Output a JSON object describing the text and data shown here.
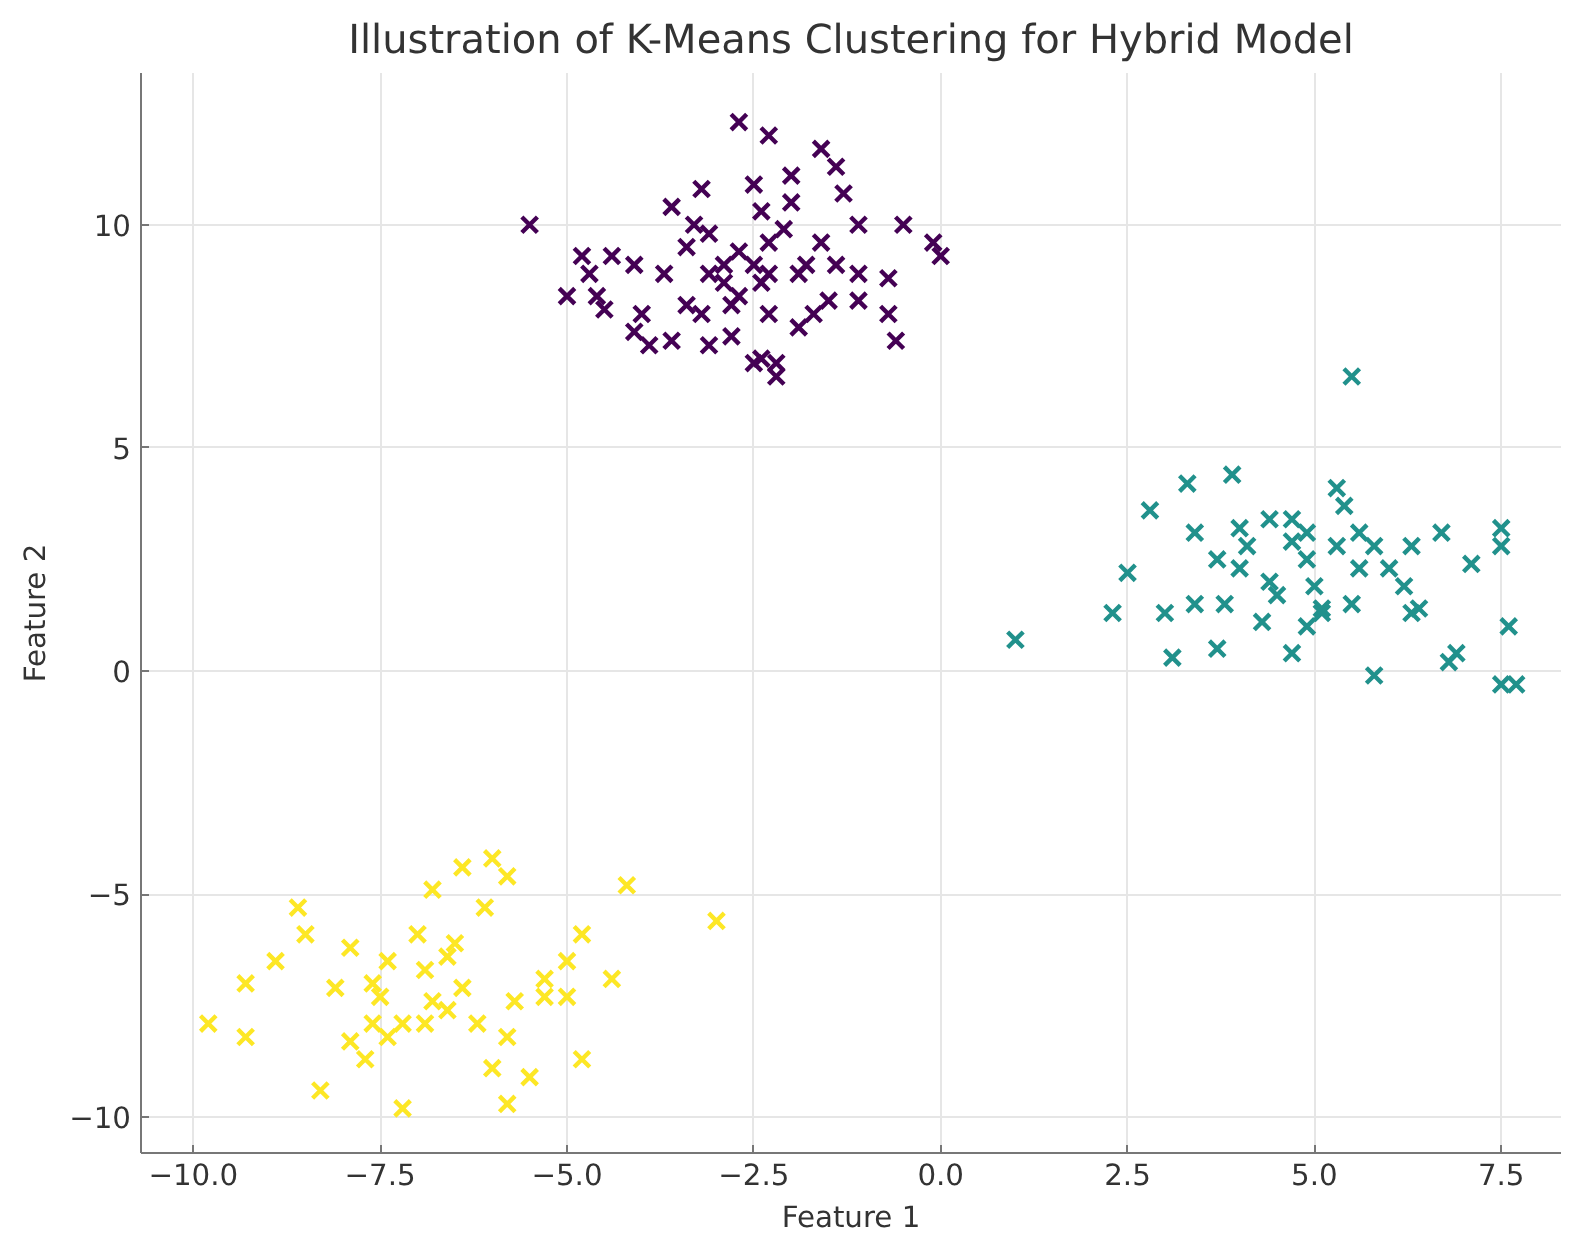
{
  "chart_data": {
    "type": "scatter",
    "title": "Illustration of K-Means Clustering for Hybrid Model",
    "xlabel": "Feature 1",
    "ylabel": "Feature 2",
    "xlim": [
      -10.7,
      8.3
    ],
    "ylim": [
      -10.8,
      13.4
    ],
    "xticks": [
      {
        "value": -10,
        "label": "−10.0"
      },
      {
        "value": -7.5,
        "label": "−7.5"
      },
      {
        "value": -5,
        "label": "−5.0"
      },
      {
        "value": -2.5,
        "label": "−2.5"
      },
      {
        "value": 0,
        "label": "0.0"
      },
      {
        "value": 2.5,
        "label": "2.5"
      },
      {
        "value": 5,
        "label": "5.0"
      },
      {
        "value": 7.5,
        "label": "7.5"
      }
    ],
    "yticks": [
      {
        "value": -10,
        "label": "−10"
      },
      {
        "value": -5,
        "label": "−5"
      },
      0,
      5,
      10
    ],
    "grid": true,
    "marker": "cross",
    "series": [
      {
        "color": "#440154",
        "x": [
          -5.5,
          -2.7,
          -2.3,
          -1.6,
          -1.4,
          -2.0,
          -1.3,
          -3.2,
          -3.6,
          -3.1,
          -2.5,
          -1.1,
          -0.5,
          -0.1,
          0.0,
          -0.6,
          -0.7,
          -0.7,
          -1.1,
          -1.4,
          -1.5,
          -1.9,
          -2.3,
          -2.4,
          -2.2,
          -2.2,
          -2.5,
          -2.8,
          -2.9,
          -2.9,
          -2.7,
          -2.5,
          -2.3,
          -2.4,
          -2.1,
          -1.9,
          -1.7,
          -1.1,
          -2.8,
          -3.4,
          -3.4,
          -3.6,
          -4.0,
          -4.4,
          -4.7,
          -4.1,
          -4.5,
          -4.6,
          -4.1,
          -3.9,
          -3.7,
          -3.2,
          -3.1,
          -2.7,
          -2.3,
          -2.0,
          -1.8,
          -3.1,
          -3.3,
          -2.4,
          -1.6,
          -5.0,
          -4.8
        ],
        "values": [
          10.0,
          12.3,
          12.0,
          11.7,
          11.3,
          11.1,
          10.7,
          10.8,
          10.4,
          9.8,
          10.9,
          10.0,
          10.0,
          9.6,
          9.3,
          7.4,
          8.0,
          8.8,
          8.9,
          9.1,
          8.3,
          7.7,
          8.0,
          7.0,
          6.9,
          6.6,
          6.9,
          7.5,
          8.7,
          9.1,
          9.4,
          9.1,
          9.6,
          10.3,
          9.9,
          8.9,
          8.0,
          8.3,
          8.2,
          9.5,
          8.2,
          7.4,
          8.0,
          9.3,
          8.9,
          9.1,
          8.1,
          8.4,
          7.6,
          7.3,
          8.9,
          8.0,
          7.3,
          8.4,
          8.9,
          10.5,
          9.1,
          8.9,
          10.0,
          8.7,
          9.6,
          8.4,
          9.3
        ]
      },
      {
        "color": "#21918c",
        "x": [
          5.5,
          1.0,
          2.8,
          3.3,
          3.9,
          2.5,
          2.3,
          3.0,
          3.1,
          3.7,
          3.4,
          3.4,
          4.0,
          4.1,
          4.4,
          4.7,
          4.7,
          3.8,
          4.3,
          4.7,
          4.9,
          5.1,
          5.0,
          5.3,
          5.4,
          5.6,
          5.8,
          6.0,
          6.2,
          6.4,
          6.3,
          6.7,
          7.1,
          7.5,
          7.5,
          7.6,
          6.8,
          6.9,
          5.8,
          7.5,
          7.7,
          5.6,
          5.5,
          5.1,
          4.5,
          4.9,
          5.3,
          6.3,
          4.0,
          4.4,
          3.7,
          4.9
        ],
        "values": [
          6.6,
          0.7,
          3.6,
          4.2,
          4.4,
          2.2,
          1.3,
          1.3,
          0.3,
          0.5,
          1.5,
          3.1,
          2.3,
          2.8,
          2.0,
          2.9,
          3.4,
          1.5,
          1.1,
          0.4,
          1.0,
          1.4,
          1.9,
          4.1,
          3.7,
          3.1,
          2.8,
          2.3,
          1.9,
          1.4,
          2.8,
          3.1,
          2.4,
          3.2,
          2.8,
          1.0,
          0.2,
          0.4,
          -0.1,
          -0.3,
          -0.3,
          2.3,
          1.5,
          1.3,
          1.7,
          2.5,
          2.8,
          1.3,
          3.2,
          3.4,
          2.5,
          3.1
        ]
      },
      {
        "color": "#fde725",
        "x": [
          -9.8,
          -9.3,
          -9.3,
          -8.9,
          -8.6,
          -8.5,
          -8.3,
          -7.9,
          -8.1,
          -7.7,
          -7.6,
          -7.5,
          -7.4,
          -7.2,
          -7.0,
          -6.8,
          -6.6,
          -6.4,
          -6.0,
          -5.8,
          -6.1,
          -6.4,
          -6.6,
          -6.9,
          -7.2,
          -6.2,
          -5.8,
          -6.0,
          -5.5,
          -5.8,
          -5.3,
          -5.0,
          -4.8,
          -4.8,
          -4.4,
          -4.2,
          -3.0,
          -5.7,
          -7.6,
          -7.9,
          -6.8,
          -6.5,
          -5.3,
          -5.0,
          -7.4,
          -6.9
        ],
        "values": [
          -7.9,
          -8.2,
          -7.0,
          -6.5,
          -5.3,
          -5.9,
          -9.4,
          -6.2,
          -7.1,
          -8.7,
          -7.9,
          -7.3,
          -6.5,
          -9.8,
          -5.9,
          -4.9,
          -6.4,
          -4.4,
          -4.2,
          -4.6,
          -5.3,
          -7.1,
          -7.6,
          -7.9,
          -7.9,
          -7.9,
          -8.2,
          -8.9,
          -9.1,
          -9.7,
          -6.9,
          -6.5,
          -5.9,
          -8.7,
          -6.9,
          -4.8,
          -5.6,
          -7.4,
          -7.0,
          -8.3,
          -7.4,
          -6.1,
          -7.3,
          -7.3,
          -8.2,
          -6.7
        ]
      }
    ]
  }
}
